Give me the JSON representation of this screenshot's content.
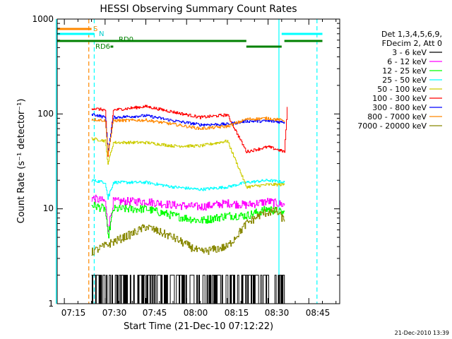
{
  "chart_data": {
    "type": "line",
    "title": "HESSI Observing Summary Count Rates",
    "xlabel": "Start Time (21-Dec-10 07:12:22)",
    "ylabel": "Count Rate (s⁻¹ detector⁻¹)",
    "y_scale": "log",
    "ylim": [
      1,
      1000
    ],
    "xlim_minutes_since_0712": [
      0,
      104
    ],
    "x_ticks": [
      "07:15",
      "07:30",
      "07:45",
      "08:00",
      "08:15",
      "08:30",
      "08:45"
    ],
    "y_ticks": [
      "1",
      "10",
      "100",
      "1000"
    ],
    "legend_header": [
      "Det 1,3,4,5,6,9,",
      "FDecim 2, Att 0"
    ],
    "legend_position": "right",
    "grid": false,
    "series": [
      {
        "name": "3 - 6 keV",
        "color": "#000000",
        "x": [
          "07:25",
          "07:33",
          "07:40",
          "07:55",
          "08:05",
          "08:15",
          "08:20",
          "08:30",
          "08:36"
        ],
        "y": [
          1.5,
          1.5,
          1.6,
          1.6,
          1.0,
          1.0,
          1.5,
          2.0,
          1.5
        ]
      },
      {
        "name": "6 - 12 keV",
        "color": "#ff00ff",
        "x": [
          "07:25",
          "07:30",
          "07:31",
          "07:33",
          "07:45",
          "07:55",
          "08:05",
          "08:15",
          "08:22",
          "08:30",
          "08:36"
        ],
        "y": [
          13,
          12,
          6,
          12,
          12,
          11,
          10.5,
          11.5,
          11,
          12,
          11
        ]
      },
      {
        "name": "12 - 25 keV",
        "color": "#00ff00",
        "x": [
          "07:25",
          "07:30",
          "07:31",
          "07:33",
          "07:45",
          "07:55",
          "08:05",
          "08:15",
          "08:22",
          "08:30",
          "08:36"
        ],
        "y": [
          11,
          10,
          5,
          10,
          10,
          8.5,
          7.5,
          8.5,
          8.5,
          10,
          9
        ]
      },
      {
        "name": "25 - 50 keV",
        "color": "#00ffff",
        "x": [
          "07:25",
          "07:30",
          "07:31",
          "07:33",
          "07:45",
          "07:55",
          "08:05",
          "08:15",
          "08:22",
          "08:30",
          "08:36"
        ],
        "y": [
          20,
          19,
          13,
          19,
          19,
          17,
          16,
          17,
          19,
          20,
          19
        ]
      },
      {
        "name": "50 - 100 keV",
        "color": "#cccc00",
        "x": [
          "07:25",
          "07:30",
          "07:31",
          "07:33",
          "07:45",
          "07:55",
          "08:05",
          "08:15",
          "08:22",
          "08:30",
          "08:36"
        ],
        "y": [
          55,
          52,
          30,
          50,
          50,
          46,
          46,
          52,
          17,
          18,
          18
        ]
      },
      {
        "name": "100 - 300 keV",
        "color": "#ff0000",
        "x": [
          "07:25",
          "07:30",
          "07:31",
          "07:33",
          "07:45",
          "07:55",
          "08:05",
          "08:15",
          "08:22",
          "08:30",
          "08:36",
          "08:37"
        ],
        "y": [
          115,
          110,
          35,
          110,
          120,
          105,
          92,
          98,
          40,
          45,
          40,
          115
        ]
      },
      {
        "name": "300 - 800 keV",
        "color": "#0000ff",
        "x": [
          "07:25",
          "07:30",
          "07:31",
          "07:33",
          "07:45",
          "07:55",
          "08:05",
          "08:15",
          "08:22",
          "08:30",
          "08:36"
        ],
        "y": [
          100,
          92,
          40,
          92,
          96,
          85,
          77,
          78,
          84,
          84,
          82
        ]
      },
      {
        "name": "800 - 7000 keV",
        "color": "#ff8800",
        "x": [
          "07:25",
          "07:30",
          "07:31",
          "07:33",
          "07:45",
          "07:55",
          "08:05",
          "08:15",
          "08:22",
          "08:30",
          "08:36"
        ],
        "y": [
          88,
          85,
          38,
          85,
          86,
          78,
          70,
          74,
          88,
          90,
          85
        ]
      },
      {
        "name": "7000 - 20000 keV",
        "color": "#888800",
        "x": [
          "07:25",
          "07:33",
          "07:40",
          "07:45",
          "07:55",
          "08:05",
          "08:15",
          "08:22",
          "08:28",
          "08:33",
          "08:36"
        ],
        "y": [
          3.5,
          4.5,
          5.5,
          6.5,
          5,
          3.5,
          4,
          7,
          9,
          9.5,
          7.5
        ]
      }
    ],
    "flags": {
      "S": {
        "color": "#ff8800",
        "start": "07:12",
        "end": "07:25"
      },
      "N": {
        "color": "#00ffff",
        "start": "07:12",
        "end": "07:26"
      },
      "RD0": {
        "color": "#008000",
        "start": "07:12",
        "end": "08:22"
      },
      "RD6": {
        "color": "#008000",
        "start": "07:32",
        "end": "07:33"
      },
      "saa_band": {
        "color": "#008000",
        "start": "08:22",
        "end": "08:35"
      },
      "N2": {
        "color": "#00ffff",
        "start": "08:35",
        "end": "08:50"
      },
      "RD0_2": {
        "color": "#008000",
        "start": "08:36",
        "end": "08:50"
      }
    },
    "vertical_markers": [
      {
        "x": "07:12",
        "color": "#00ffff",
        "style": "solid"
      },
      {
        "x": "07:24",
        "color": "#ff8800",
        "style": "dashed"
      },
      {
        "x": "07:26",
        "color": "#00ffff",
        "style": "dashed"
      },
      {
        "x": "08:34",
        "color": "#00ffff",
        "style": "solid"
      },
      {
        "x": "08:48",
        "color": "#00ffff",
        "style": "dashed"
      }
    ],
    "flag_labels": {
      "S": "S",
      "N": "N",
      "RD0": "RD0",
      "RD6": "RD6"
    },
    "timestamp": "21-Dec-2010 13:39"
  }
}
